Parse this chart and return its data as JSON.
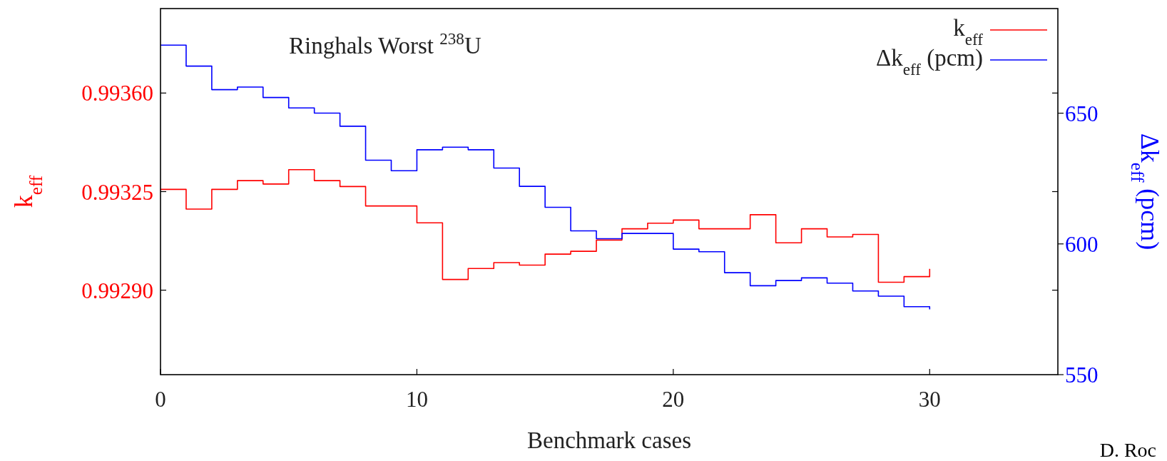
{
  "chart_data": {
    "type": "step",
    "xlabel": "Benchmark cases",
    "ylabel": "k$_{eff}$",
    "y2label": "Δk$_{eff}$ (pcm)",
    "annotations": [
      "Ringhals Worst $^{238}$U",
      "D. Roc"
    ],
    "x": [
      0,
      1,
      2,
      3,
      4,
      5,
      6,
      7,
      8,
      9,
      10,
      11,
      12,
      13,
      14,
      15,
      16,
      17,
      18,
      19,
      20,
      21,
      22,
      23,
      24,
      25,
      26,
      27,
      28,
      29,
      30
    ],
    "series": [
      {
        "name": "k$_{eff}$",
        "color": "#ff0000",
        "values": [
          0.993258,
          0.993188,
          0.993258,
          0.993289,
          0.993277,
          0.993328,
          0.993289,
          0.993268,
          0.993199,
          0.993199,
          0.993139,
          0.992938,
          0.992977,
          0.992998,
          0.992989,
          0.993028,
          0.993038,
          0.993078,
          0.993118,
          0.993138,
          0.993149,
          0.993118,
          0.993118,
          0.993168,
          0.993068,
          0.993118,
          0.993089,
          0.993098,
          0.992928,
          0.992948,
          0.992976
        ]
      },
      {
        "name": "Δk$_{eff}$ (pcm)",
        "color": "#0000ff",
        "axis": "y2",
        "values": [
          676,
          668,
          659,
          660,
          656,
          652,
          650,
          645,
          632,
          628,
          636,
          637,
          636,
          629,
          622,
          614,
          605,
          602,
          604,
          604,
          598,
          597,
          589,
          584,
          586,
          587,
          585,
          582,
          580,
          576,
          575
        ]
      }
    ],
    "xlim": [
      0,
      35
    ],
    "xticks": [
      0,
      10,
      20,
      30
    ],
    "ylim": [
      0.9926,
      0.9939
    ],
    "yticks": [
      {
        "value": 0.9936,
        "label": "0.99360"
      },
      {
        "value": 0.99325,
        "label": "0.99325"
      },
      {
        "value": 0.9929,
        "label": "0.99290"
      }
    ],
    "y2lim": [
      550,
      690
    ],
    "y2ticks": [
      550,
      600,
      650
    ],
    "legend": "top right",
    "grid": false
  }
}
